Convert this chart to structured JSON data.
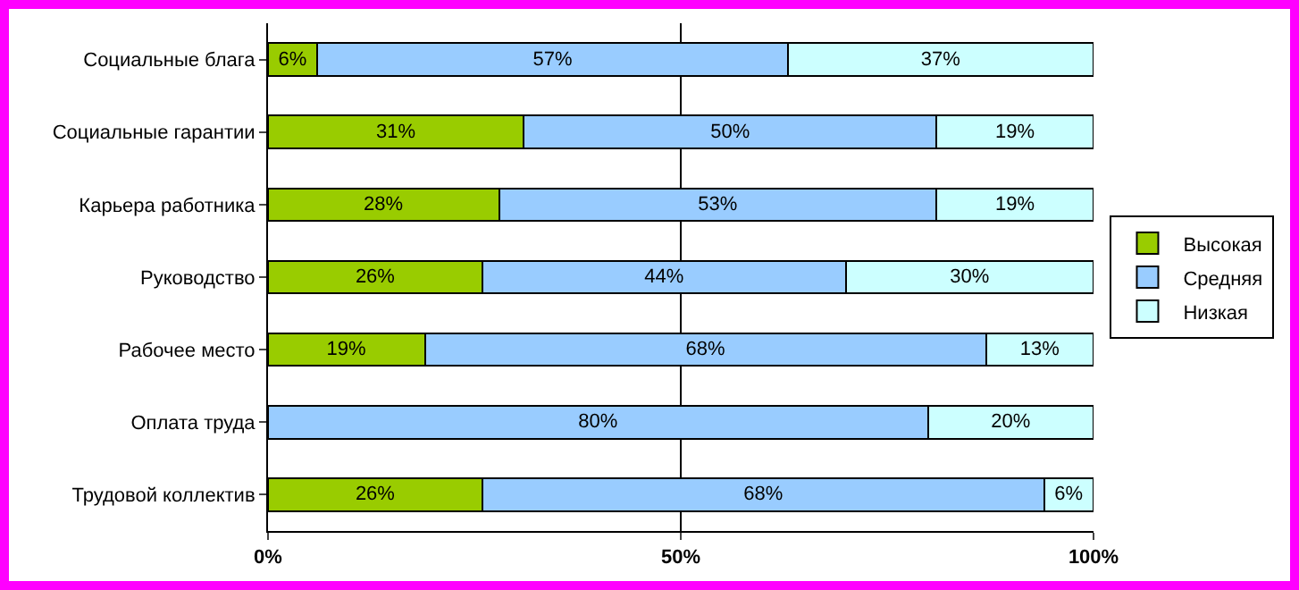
{
  "chart_data": {
    "type": "bar",
    "orientation": "horizontal",
    "stacked": true,
    "categories": [
      "Социальные блага",
      "Социальные гарантии",
      "Карьера работника",
      "Руководство",
      "Рабочее место",
      "Оплата труда",
      "Трудовой коллектив"
    ],
    "series": [
      {
        "name": "Высокая",
        "color": "#99cc00",
        "values": [
          6,
          31,
          28,
          26,
          19,
          null,
          26
        ],
        "value_labels": [
          "6%",
          "31%",
          "28%",
          "26%",
          "19%",
          null,
          "26%"
        ]
      },
      {
        "name": "Средняя",
        "color": "#99ccff",
        "values": [
          57,
          50,
          53,
          44,
          68,
          80,
          68
        ],
        "value_labels": [
          "57%",
          "50%",
          "53%",
          "44%",
          "68%",
          "80%",
          "68%"
        ]
      },
      {
        "name": "Низкая",
        "color": "#ccffff",
        "values": [
          37,
          19,
          19,
          30,
          13,
          20,
          6
        ],
        "value_labels": [
          "37%",
          "19%",
          "19%",
          "30%",
          "13%",
          "20%",
          "6%"
        ]
      }
    ],
    "xlim": [
      0,
      100
    ],
    "xticks": [
      {
        "value": 0,
        "label": "0%"
      },
      {
        "value": 50,
        "label": "50%"
      },
      {
        "value": 100,
        "label": "100%"
      }
    ],
    "grid": "x",
    "legend": "right"
  }
}
